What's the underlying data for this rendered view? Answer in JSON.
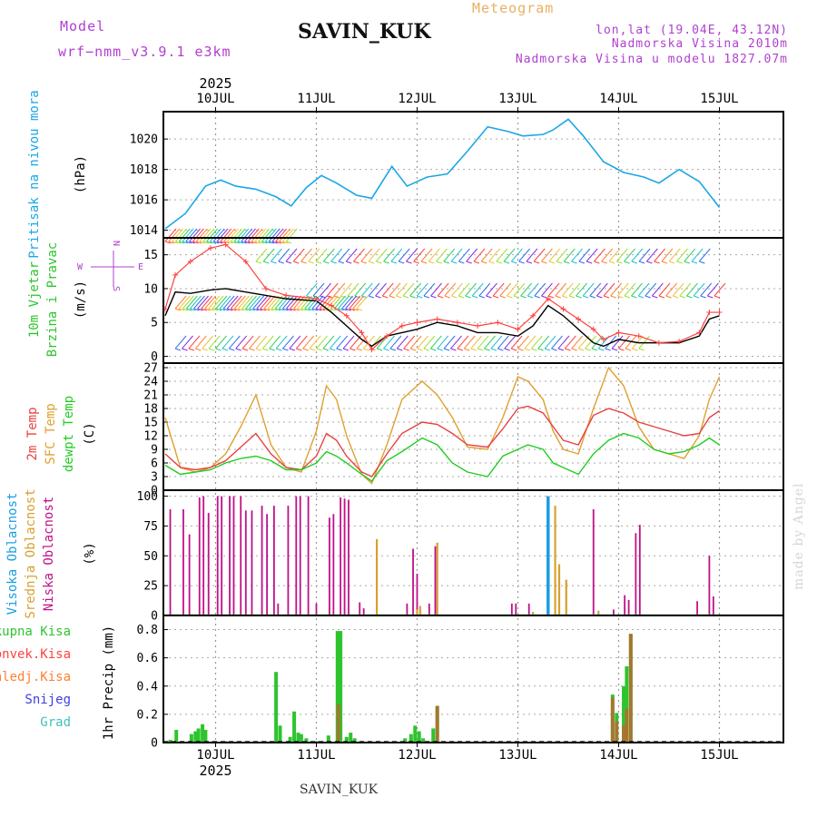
{
  "header": {
    "model_label": "Model",
    "model_name": "wrf−nmm_v3.9.1  e3km",
    "station": "SAVIN_KUK",
    "title": "Meteogram",
    "lonlat": "lon,lat (19.04E, 43.12N)",
    "elevation": "Nadmorska Visina 2010m",
    "model_elevation": "Nadmorska Visina u modelu 1827.07m"
  },
  "footer": {
    "station": "SAVIN_KUK",
    "credit": "made by Angel"
  },
  "colors": {
    "pressure": "#1aa7e6",
    "wind_label": "#22bb22",
    "temp2m": "#e84040",
    "sfc": "#e0a030",
    "dew": "#22cc22",
    "high_cloud": "#1a9ee0",
    "mid_cloud": "#d8a030",
    "low_cloud": "#c0108a",
    "purple": "#b040d0"
  },
  "chart_data": [
    {
      "type": "line",
      "panel": "pressure",
      "ylabel_left": "Pritisak na nivou mora",
      "ylabel_unit": "(hPa)",
      "ylim": [
        1013.5,
        1021.8
      ],
      "yticks": [
        "1014",
        "1016",
        "1018",
        "1020"
      ],
      "ytick_values": [
        1014,
        1016,
        1018,
        1020
      ],
      "x_days": [
        0,
        0.2,
        0.4,
        0.55,
        0.7,
        0.9,
        1.1,
        1.25,
        1.4,
        1.55,
        1.7,
        1.9,
        2.05,
        2.25,
        2.4,
        2.6,
        2.8,
        3.0,
        3.2,
        3.4,
        3.55,
        3.75,
        3.85,
        4.0,
        4.15,
        4.35,
        4.55,
        4.75,
        4.9,
        5.1,
        5.3,
        5.5
      ],
      "values": [
        1014.1,
        1015.1,
        1016.9,
        1017.3,
        1016.9,
        1016.7,
        1016.2,
        1015.6,
        1016.8,
        1017.6,
        1017.1,
        1016.3,
        1016.1,
        1018.2,
        1016.9,
        1017.5,
        1017.7,
        1019.2,
        1020.8,
        1020.5,
        1020.2,
        1020.3,
        1020.6,
        1021.3,
        1020.2,
        1018.5,
        1017.8,
        1017.5,
        1017.1,
        1018.0,
        1017.2,
        1015.5
      ]
    },
    {
      "type": "line",
      "panel": "wind",
      "ylabel_left_1": "10m Vjetar",
      "ylabel_left_2": "Brzina i Pravac",
      "ylabel_unit": "(m/s)",
      "compass": {
        "north": "N",
        "south": "S",
        "west": "W",
        "east": "E"
      },
      "ylim": [
        -1,
        17.5
      ],
      "yticks": [
        "0",
        "5",
        "10",
        "15"
      ],
      "ytick_values": [
        0,
        5,
        10,
        15
      ],
      "x_days": [
        0,
        0.1,
        0.25,
        0.45,
        0.6,
        0.8,
        1.0,
        1.2,
        1.5,
        1.65,
        1.8,
        1.95,
        2.05,
        2.2,
        2.35,
        2.5,
        2.7,
        2.9,
        3.1,
        3.3,
        3.5,
        3.65,
        3.8,
        3.95,
        4.1,
        4.25,
        4.35,
        4.5,
        4.7,
        4.9,
        5.1,
        5.3,
        5.4,
        5.5
      ],
      "speed": [
        6,
        9.5,
        9.3,
        9.8,
        10,
        9.5,
        9,
        8.5,
        8.2,
        6.5,
        4.5,
        2.5,
        1.5,
        3,
        3.5,
        4,
        5,
        4.5,
        3.5,
        3.5,
        3,
        4.5,
        7.5,
        6,
        4,
        2,
        1.5,
        2.5,
        2,
        2,
        2,
        3,
        5.5,
        6
      ],
      "gust": [
        7,
        12,
        14,
        16,
        16.5,
        14,
        10,
        9,
        8.5,
        7.5,
        6,
        3.5,
        1,
        3,
        4.5,
        5,
        5.5,
        5,
        4.5,
        5,
        4,
        6,
        8.5,
        7,
        5.5,
        4,
        2.5,
        3.5,
        3,
        2,
        2.2,
        3.5,
        6.5,
        6.5
      ]
    },
    {
      "type": "line",
      "panel": "temperature",
      "series_names": [
        "2m Temp",
        "SFC Temp",
        "dewpt Temp"
      ],
      "ylabel_unit": "(C)",
      "ylim": [
        0,
        28
      ],
      "yticks": [
        "0",
        "3",
        "6",
        "9",
        "12",
        "15",
        "18",
        "21",
        "24",
        "27"
      ],
      "ytick_values": [
        0,
        3,
        6,
        9,
        12,
        15,
        18,
        21,
        24,
        27
      ],
      "x_days": [
        0,
        0.15,
        0.3,
        0.45,
        0.6,
        0.75,
        0.9,
        1.05,
        1.2,
        1.35,
        1.5,
        1.6,
        1.7,
        1.8,
        1.95,
        2.05,
        2.2,
        2.35,
        2.55,
        2.7,
        2.85,
        3.0,
        3.2,
        3.35,
        3.5,
        3.6,
        3.75,
        3.85,
        3.95,
        4.1,
        4.25,
        4.4,
        4.55,
        4.7,
        4.85,
        5.0,
        5.15,
        5.3,
        5.4,
        5.5
      ],
      "temp2m": [
        8,
        5,
        4.5,
        5,
        6.5,
        9.5,
        12.5,
        8,
        5,
        4.5,
        7.5,
        12.5,
        11,
        7.5,
        4,
        3,
        8,
        12.5,
        15,
        14.5,
        12.5,
        10,
        9.5,
        13.5,
        18,
        18.5,
        17,
        14,
        11,
        10,
        16.5,
        18,
        17,
        15,
        14,
        13,
        12,
        12.5,
        16,
        17.5
      ],
      "sfc": [
        16,
        5,
        4,
        5,
        8,
        14,
        21,
        10,
        5,
        4,
        13,
        23,
        20,
        12,
        3.5,
        1.5,
        10,
        20,
        24,
        21,
        16,
        9.5,
        9,
        16,
        25,
        24,
        20,
        13,
        9,
        8,
        18,
        27,
        23,
        14,
        9,
        8,
        7,
        12,
        20,
        25
      ],
      "dewpt": [
        5.5,
        3.5,
        4,
        4.5,
        6,
        7,
        7.5,
        6.5,
        4.5,
        4.5,
        6,
        8.5,
        7.5,
        6,
        3.5,
        2,
        6.5,
        8.5,
        11.5,
        10,
        6,
        4,
        3,
        7.5,
        9,
        10,
        9,
        6,
        5,
        3.5,
        8,
        11,
        12.5,
        11.5,
        9,
        8,
        8.5,
        10,
        11.5,
        10
      ]
    },
    {
      "type": "bar",
      "panel": "clouds",
      "series_names": [
        "Visoka Oblacnost",
        "Srednja Oblacnost",
        "Niska Oblacnost"
      ],
      "ylabel_unit": "(%)",
      "ylim": [
        0,
        105
      ],
      "yticks": [
        "0",
        "25",
        "50",
        "75",
        "100"
      ],
      "ytick_values": [
        0,
        25,
        50,
        75,
        100
      ],
      "high": [
        [
          3.8,
          100
        ]
      ],
      "mid": [
        [
          2.1,
          64
        ],
        [
          2.5,
          5
        ],
        [
          2.53,
          8
        ],
        [
          2.7,
          61
        ],
        [
          3.65,
          3
        ],
        [
          3.8,
          97
        ],
        [
          3.87,
          92
        ],
        [
          3.91,
          43
        ],
        [
          3.98,
          30
        ],
        [
          4.3,
          4
        ]
      ],
      "low": [
        [
          0.05,
          89
        ],
        [
          0.18,
          89
        ],
        [
          0.24,
          68
        ],
        [
          0.34,
          99
        ],
        [
          0.38,
          100
        ],
        [
          0.43,
          86
        ],
        [
          0.52,
          100
        ],
        [
          0.56,
          100
        ],
        [
          0.64,
          100
        ],
        [
          0.68,
          100
        ],
        [
          0.75,
          100
        ],
        [
          0.8,
          88
        ],
        [
          0.86,
          88
        ],
        [
          0.96,
          92
        ],
        [
          1.01,
          85
        ],
        [
          1.08,
          92
        ],
        [
          1.12,
          10
        ],
        [
          1.22,
          92
        ],
        [
          1.3,
          100
        ],
        [
          1.34,
          100
        ],
        [
          1.42,
          100
        ],
        [
          1.5,
          10
        ],
        [
          1.63,
          82
        ],
        [
          1.67,
          85
        ],
        [
          1.74,
          99
        ],
        [
          1.78,
          98
        ],
        [
          1.82,
          97
        ],
        [
          1.93,
          11
        ],
        [
          1.97,
          6
        ],
        [
          2.4,
          10
        ],
        [
          2.46,
          56
        ],
        [
          2.5,
          35
        ],
        [
          2.62,
          10
        ],
        [
          2.68,
          58
        ],
        [
          3.44,
          10
        ],
        [
          3.48,
          10
        ],
        [
          3.61,
          10
        ],
        [
          4.25,
          89
        ],
        [
          4.45,
          5
        ],
        [
          4.56,
          17
        ],
        [
          4.6,
          13
        ],
        [
          4.67,
          69
        ],
        [
          4.71,
          76
        ],
        [
          5.28,
          12
        ],
        [
          5.4,
          50
        ],
        [
          5.44,
          16
        ]
      ]
    },
    {
      "type": "bar",
      "panel": "precipitation",
      "series_names": [
        "Ukupna Kisa",
        "Konvek.Kisa",
        "Zaledj.Kisa",
        "Snijeg",
        "Grad"
      ],
      "ylabel_unit": "1hr Precip (mm)",
      "ylim": [
        0,
        0.9
      ],
      "yticks": [
        "0",
        "0.2",
        "0.4",
        "0.6",
        "0.8"
      ],
      "ytick_values": [
        0,
        0.2,
        0.4,
        0.6,
        0.8
      ],
      "total": [
        [
          0.05,
          0.02
        ],
        [
          0.11,
          0.09
        ],
        [
          0.26,
          0.06
        ],
        [
          0.3,
          0.08
        ],
        [
          0.33,
          0.1
        ],
        [
          0.37,
          0.13
        ],
        [
          0.4,
          0.09
        ],
        [
          0.48,
          0.01
        ],
        [
          0.6,
          0.01
        ],
        [
          0.99,
          0.01
        ],
        [
          1.1,
          0.5
        ],
        [
          1.14,
          0.12
        ],
        [
          1.24,
          0.04
        ],
        [
          1.28,
          0.22
        ],
        [
          1.32,
          0.07
        ],
        [
          1.35,
          0.06
        ],
        [
          1.4,
          0.03
        ],
        [
          1.5,
          0.01
        ],
        [
          1.55,
          0.01
        ],
        [
          1.62,
          0.05
        ],
        [
          1.71,
          0.79
        ],
        [
          1.74,
          0.79
        ],
        [
          1.8,
          0.04
        ],
        [
          1.84,
          0.07
        ],
        [
          1.88,
          0.03
        ],
        [
          2.38,
          0.03
        ],
        [
          2.44,
          0.06
        ],
        [
          2.48,
          0.12
        ],
        [
          2.52,
          0.08
        ],
        [
          2.56,
          0.03
        ],
        [
          2.66,
          0.1
        ],
        [
          2.7,
          0.26
        ],
        [
          4.44,
          0.34
        ],
        [
          4.48,
          0.21
        ],
        [
          4.55,
          0.4
        ],
        [
          4.58,
          0.54
        ],
        [
          4.62,
          0.77
        ]
      ],
      "convective": [
        [
          1.72,
          0.27
        ],
        [
          2.7,
          0.26
        ],
        [
          4.44,
          0.32
        ],
        [
          4.48,
          0.15
        ],
        [
          4.55,
          0.12
        ],
        [
          4.58,
          0.24
        ],
        [
          4.62,
          0.77
        ]
      ]
    }
  ],
  "x_axis": {
    "year": "2025",
    "day_labels": [
      "10JUL",
      "11JUL",
      "12JUL",
      "13JUL",
      "14JUL",
      "15JUL"
    ],
    "day_positions": [
      0.5,
      1.5,
      2.5,
      3.5,
      4.5,
      5.5
    ]
  }
}
